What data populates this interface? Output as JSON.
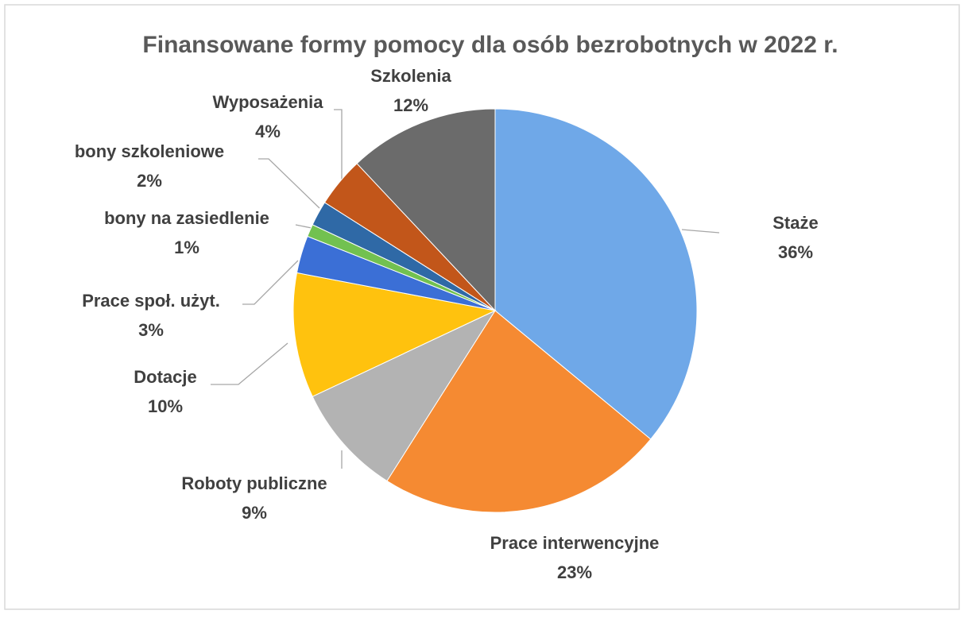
{
  "chart_data": {
    "type": "pie",
    "title": "Finansowane formy pomocy dla osób bezrobotnych w 2022 r.",
    "categories": [
      "Staże",
      "Prace interwencyjne",
      "Roboty publiczne",
      "Dotacje",
      "Prace społ. użyt.",
      "bony na zasiedlenie",
      "bony szkoleniowe",
      "Wyposażenia",
      "Szkolenia"
    ],
    "values": [
      36,
      23,
      9,
      10,
      3,
      1,
      2,
      4,
      12
    ],
    "value_labels": [
      "36%",
      "23%",
      "9%",
      "10%",
      "3%",
      "1%",
      "2%",
      "4%",
      "12%"
    ],
    "colors": [
      "#6fa8e8",
      "#f58a32",
      "#b3b3b3",
      "#ffc20e",
      "#3b6fd6",
      "#72c150",
      "#2f69a6",
      "#c2561a",
      "#6b6b6b"
    ]
  }
}
